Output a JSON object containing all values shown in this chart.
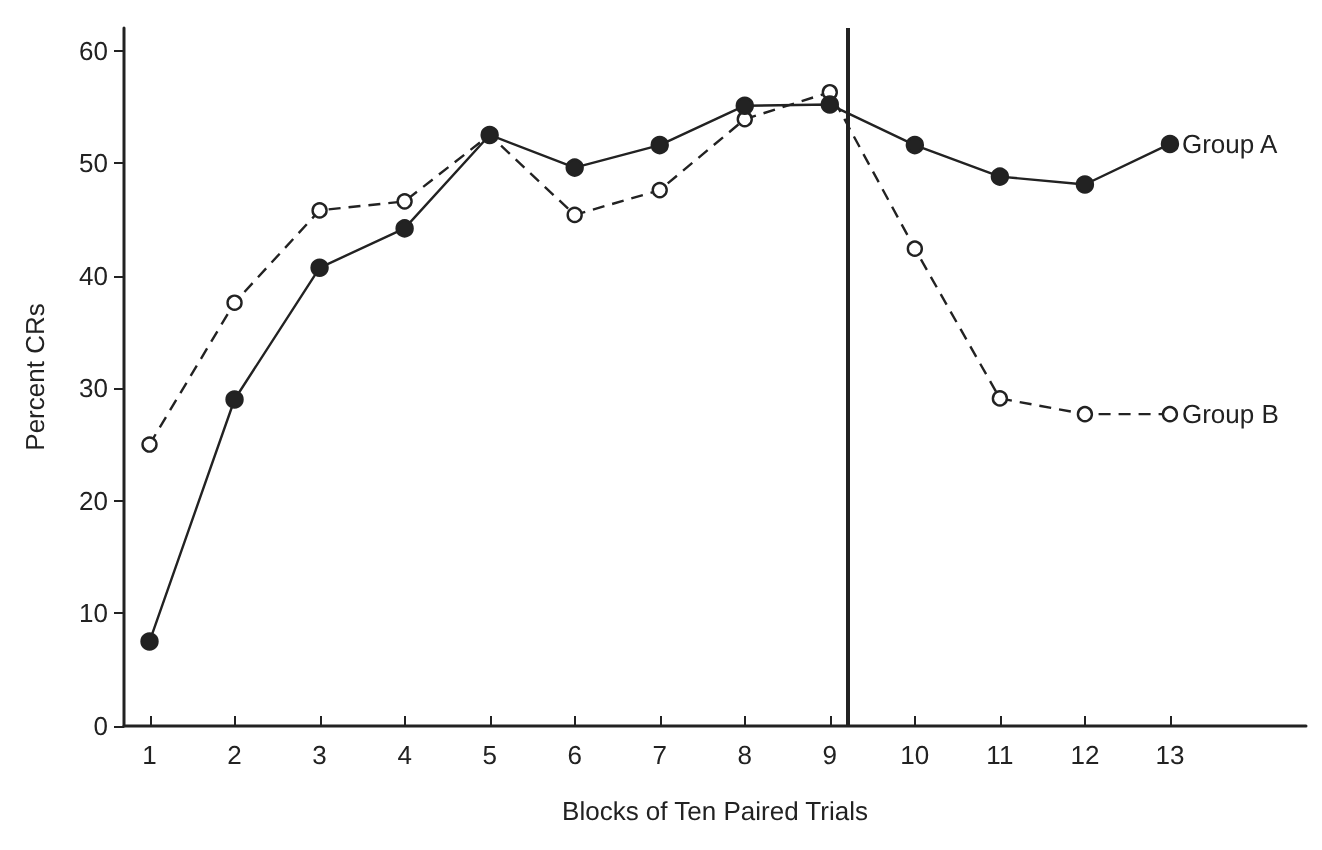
{
  "chart_data": {
    "type": "line",
    "xlabel": "Blocks of Ten Paired Trials",
    "ylabel": "Percent CRs",
    "x": [
      1,
      2,
      3,
      4,
      5,
      6,
      7,
      8,
      9,
      10,
      11,
      12,
      13
    ],
    "series": [
      {
        "name": "Group A",
        "color": "#222222",
        "marker": "circle",
        "line_style": "solid",
        "values": [
          7.5,
          29,
          40.7,
          44.2,
          52.5,
          49.6,
          51.6,
          55.1,
          55.2,
          51.6,
          48.8,
          48.1,
          51.7
        ]
      },
      {
        "name": "Group B",
        "color": "#222222",
        "marker": "circle",
        "line_style": "dashed",
        "values": [
          25,
          37.6,
          45.8,
          46.6,
          52.5,
          45.4,
          47.6,
          53.9,
          56.3,
          42.4,
          29.1,
          27.7,
          27.7
        ]
      }
    ],
    "xlim": [
      0.7,
      14.6
    ],
    "xticks": [
      1,
      2,
      3,
      4,
      5,
      6,
      7,
      8,
      9,
      10,
      11,
      12,
      13
    ],
    "ylim": [
      0,
      62
    ],
    "yticks": [
      0,
      10,
      20,
      30,
      40,
      50,
      60
    ],
    "ref_lines": [
      {
        "axis": "x",
        "value": 9.2,
        "color": "#222222"
      }
    ],
    "grid": false,
    "legend": false
  }
}
